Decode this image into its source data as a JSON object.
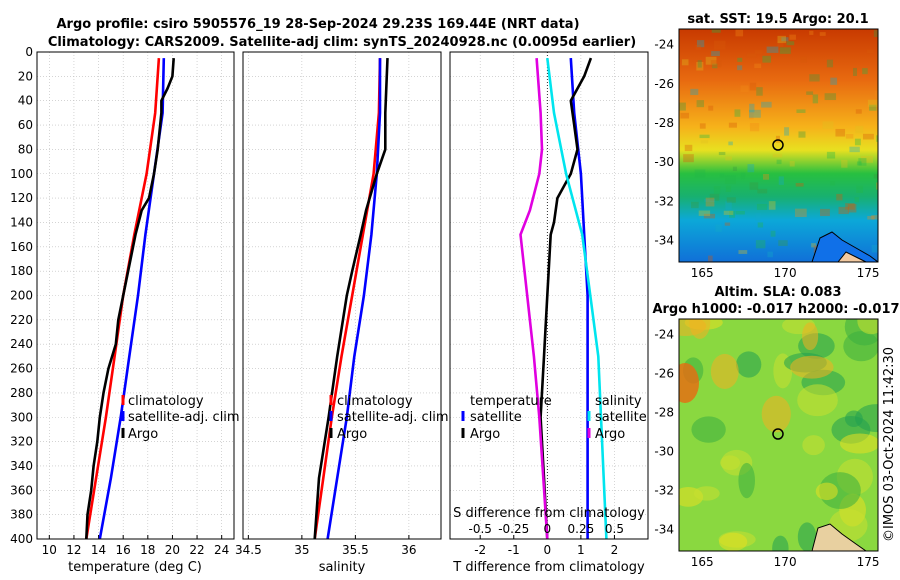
{
  "titles": {
    "line1": "Argo profile: csiro 5905576_19 28-Sep-2024 29.23S 169.44E (NRT data)",
    "line2": "Climatology: CARS2009. Satellite-adj clim: synTS_20240928.nc (0.0095d earlier)"
  },
  "watermark": "©IMOS 03-Oct-2024 11:42:30",
  "chart_data": [
    {
      "type": "line",
      "panel": "temperature",
      "xlabel": "temperature (deg C)",
      "xlim": [
        9,
        25
      ],
      "ylim": [
        400,
        0
      ],
      "yticks": [
        "0",
        "20",
        "40",
        "60",
        "80",
        "100",
        "120",
        "140",
        "160",
        "180",
        "200",
        "220",
        "240",
        "260",
        "280",
        "300",
        "320",
        "340",
        "360",
        "380",
        "400"
      ],
      "xticks": [
        "10",
        "12",
        "14",
        "16",
        "18",
        "20",
        "22",
        "24"
      ],
      "xtick_values": [
        10,
        12,
        14,
        16,
        18,
        20,
        22,
        24
      ],
      "legend": [
        "climatology",
        "satellite-adj. clim",
        "Argo"
      ],
      "series": [
        {
          "name": "climatology",
          "color": "#ff0000",
          "depth": [
            5,
            50,
            100,
            150,
            200,
            250,
            300,
            350,
            400
          ],
          "values": [
            18.9,
            18.6,
            17.9,
            16.9,
            16.0,
            15.3,
            14.6,
            13.8,
            13.0
          ]
        },
        {
          "name": "satellite-adj. clim",
          "color": "#0000ff",
          "depth": [
            5,
            50,
            100,
            150,
            200,
            250,
            300,
            350,
            400
          ],
          "values": [
            19.3,
            19.2,
            18.5,
            17.8,
            17.2,
            16.5,
            15.8,
            15.0,
            14.1
          ]
        },
        {
          "name": "Argo",
          "color": "#000000",
          "depth": [
            5,
            20,
            30,
            40,
            50,
            80,
            100,
            120,
            130,
            150,
            170,
            200,
            220,
            240,
            260,
            280,
            300,
            320,
            340,
            360,
            380,
            400
          ],
          "values": [
            20.1,
            20.0,
            19.6,
            19.1,
            19.1,
            18.8,
            18.5,
            18.1,
            17.5,
            17.0,
            16.6,
            16.0,
            15.6,
            15.4,
            14.8,
            14.4,
            14.1,
            13.9,
            13.6,
            13.4,
            13.1,
            13.0
          ]
        }
      ]
    },
    {
      "type": "line",
      "panel": "salinity",
      "xlabel": "salinity",
      "xlim": [
        34.45,
        36.3
      ],
      "ylim": [
        400,
        0
      ],
      "xticks": [
        "34.5",
        "35",
        "35.5",
        "36"
      ],
      "xtick_values": [
        34.5,
        35,
        35.5,
        36
      ],
      "legend": [
        "climatology",
        "satellite-adj. clim",
        "Argo"
      ],
      "series": [
        {
          "name": "climatology",
          "color": "#ff0000",
          "depth": [
            5,
            50,
            100,
            150,
            200,
            250,
            300,
            350,
            400
          ],
          "values": [
            35.73,
            35.72,
            35.67,
            35.57,
            35.47,
            35.37,
            35.28,
            35.2,
            35.12
          ]
        },
        {
          "name": "satellite-adj. clim",
          "color": "#0000ff",
          "depth": [
            5,
            50,
            100,
            150,
            200,
            250,
            300,
            350,
            400
          ],
          "values": [
            35.73,
            35.73,
            35.7,
            35.65,
            35.58,
            35.49,
            35.42,
            35.33,
            35.24
          ]
        },
        {
          "name": "Argo",
          "color": "#000000",
          "depth": [
            5,
            50,
            80,
            100,
            130,
            150,
            180,
            200,
            250,
            300,
            350,
            400
          ],
          "values": [
            35.8,
            35.78,
            35.78,
            35.7,
            35.6,
            35.55,
            35.47,
            35.42,
            35.33,
            35.25,
            35.16,
            35.12
          ]
        }
      ]
    },
    {
      "type": "line",
      "panel": "difference",
      "xlabel": "T difference from climatology",
      "xlabel_top": "S difference from climatology",
      "xlim": [
        -2.9,
        3.0
      ],
      "ylim": [
        400,
        0
      ],
      "xticks": [
        "-2",
        "-1",
        "0",
        "1",
        "2"
      ],
      "xtick_values": [
        -2,
        -1,
        0,
        1,
        2
      ],
      "s_xticks": [
        "-0.5",
        "-0.25",
        "0",
        "0.25",
        "0.5"
      ],
      "legend_headers": [
        "temperature",
        "salinity"
      ],
      "legend": [
        "satellite",
        "Argo",
        "satellite",
        "Argo"
      ],
      "series": [
        {
          "name": "T satellite",
          "color": "#0000ff",
          "depth": [
            5,
            50,
            100,
            150,
            200,
            250,
            300,
            350,
            400
          ],
          "values": [
            0.7,
            0.8,
            1.0,
            1.1,
            1.2,
            1.2,
            1.2,
            1.2,
            1.2
          ]
        },
        {
          "name": "T Argo",
          "color": "#000000",
          "depth": [
            5,
            20,
            40,
            60,
            80,
            100,
            120,
            140,
            150,
            200,
            250,
            300,
            350,
            400
          ],
          "values": [
            1.3,
            1.1,
            0.7,
            0.8,
            0.9,
            0.7,
            0.3,
            0.2,
            0.1,
            0.0,
            -0.1,
            -0.2,
            -0.1,
            0.0
          ]
        },
        {
          "name": "S satellite",
          "color": "#00e5ee",
          "depth": [
            5,
            50,
            100,
            150,
            200,
            250,
            300,
            350,
            400
          ],
          "values": [
            0.0,
            0.05,
            0.14,
            0.26,
            0.32,
            0.38,
            0.4,
            0.42,
            0.44
          ]
        },
        {
          "name": "S Argo",
          "color": "#e000e0",
          "depth": [
            5,
            50,
            80,
            100,
            130,
            150,
            200,
            250,
            300,
            350,
            400
          ],
          "values": [
            -0.08,
            -0.05,
            -0.04,
            -0.06,
            -0.13,
            -0.2,
            -0.15,
            -0.1,
            -0.06,
            -0.03,
            0.0
          ]
        }
      ]
    },
    {
      "type": "heatmap",
      "panel": "sst-map",
      "title": "sat. SST: 19.5 Argo: 20.1",
      "xticks": [
        "165",
        "170",
        "175"
      ],
      "yticks": [
        "-24",
        "-26",
        "-28",
        "-30",
        "-32",
        "-34"
      ]
    },
    {
      "type": "heatmap",
      "panel": "sla-map",
      "title_line1": "Altim. SLA: 0.083",
      "title_line2": "Argo h1000: -0.017 h2000: -0.017",
      "xticks": [
        "165",
        "170",
        "175"
      ],
      "yticks": [
        "-24",
        "-26",
        "-28",
        "-30",
        "-32",
        "-34"
      ]
    }
  ]
}
